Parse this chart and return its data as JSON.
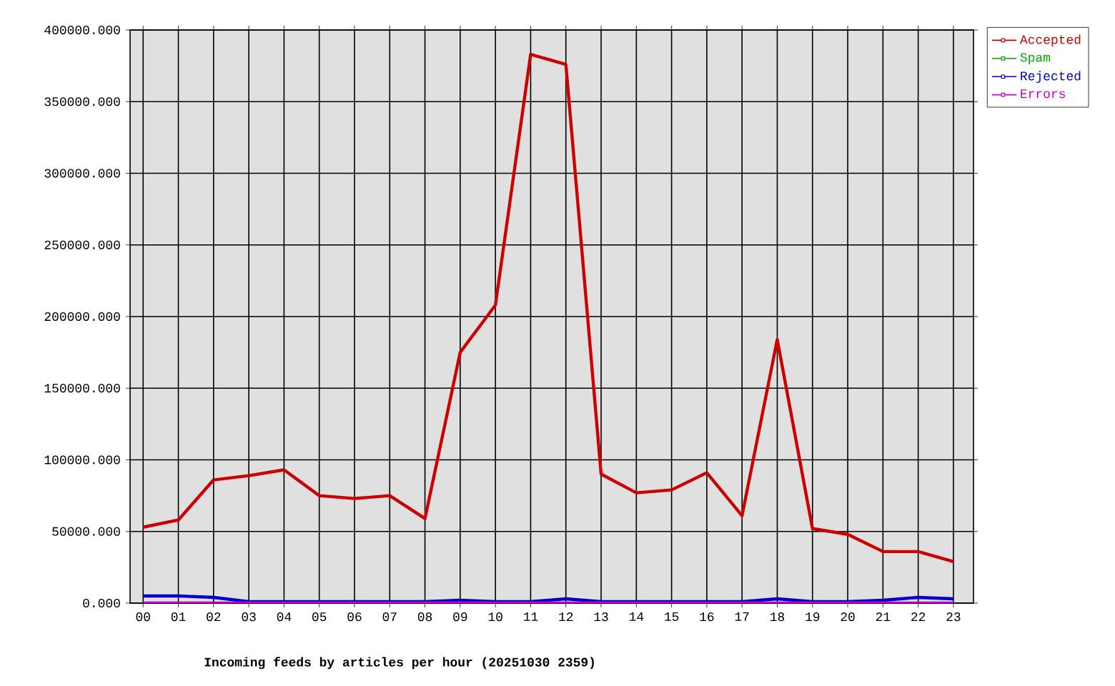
{
  "chart_data": {
    "type": "line",
    "title": "Incoming feeds by articles per hour (20251030 2359)",
    "categories": [
      "00",
      "01",
      "02",
      "03",
      "04",
      "05",
      "06",
      "07",
      "08",
      "09",
      "10",
      "11",
      "12",
      "13",
      "14",
      "15",
      "16",
      "17",
      "18",
      "19",
      "20",
      "21",
      "22",
      "23"
    ],
    "series": [
      {
        "name": "Accepted",
        "color": "#cc0000",
        "values": [
          53000,
          58000,
          86000,
          89000,
          93000,
          75000,
          73000,
          75000,
          59000,
          175000,
          208000,
          383000,
          376000,
          90000,
          77000,
          79000,
          91000,
          61000,
          184000,
          52000,
          48000,
          36000,
          36000,
          29000
        ]
      },
      {
        "name": "Spam",
        "color": "#00aa00",
        "values": [
          null,
          null,
          null,
          null,
          null,
          null,
          null,
          null,
          null,
          null,
          null,
          null,
          null,
          null,
          null,
          null,
          null,
          null,
          null,
          null,
          null,
          null,
          null,
          null
        ]
      },
      {
        "name": "Rejected",
        "color": "#0000cc",
        "values": [
          5000,
          5000,
          4000,
          1000,
          1000,
          1000,
          1000,
          1000,
          1000,
          2000,
          1000,
          1000,
          3000,
          1000,
          1000,
          1000,
          1000,
          1000,
          3000,
          1000,
          1000,
          2000,
          4000,
          3000
        ]
      },
      {
        "name": "Errors",
        "color": "#cc00cc",
        "values": [
          0,
          0,
          0,
          0,
          0,
          0,
          0,
          0,
          0,
          0,
          0,
          0,
          0,
          0,
          0,
          0,
          0,
          0,
          0,
          0,
          0,
          0,
          0,
          0
        ]
      }
    ],
    "ylim": [
      0,
      400000
    ],
    "yticks": [
      {
        "value": 0,
        "label": "0.000"
      },
      {
        "value": 50000,
        "label": "50000.000"
      },
      {
        "value": 100000,
        "label": "100000.000"
      },
      {
        "value": 150000,
        "label": "150000.000"
      },
      {
        "value": 200000,
        "label": "200000.000"
      },
      {
        "value": 250000,
        "label": "250000.000"
      },
      {
        "value": 300000,
        "label": "300000.000"
      },
      {
        "value": 350000,
        "label": "350000.000"
      },
      {
        "value": 400000,
        "label": "400000.000"
      }
    ],
    "grid": true,
    "legend": "top right",
    "line_style": "solid"
  }
}
